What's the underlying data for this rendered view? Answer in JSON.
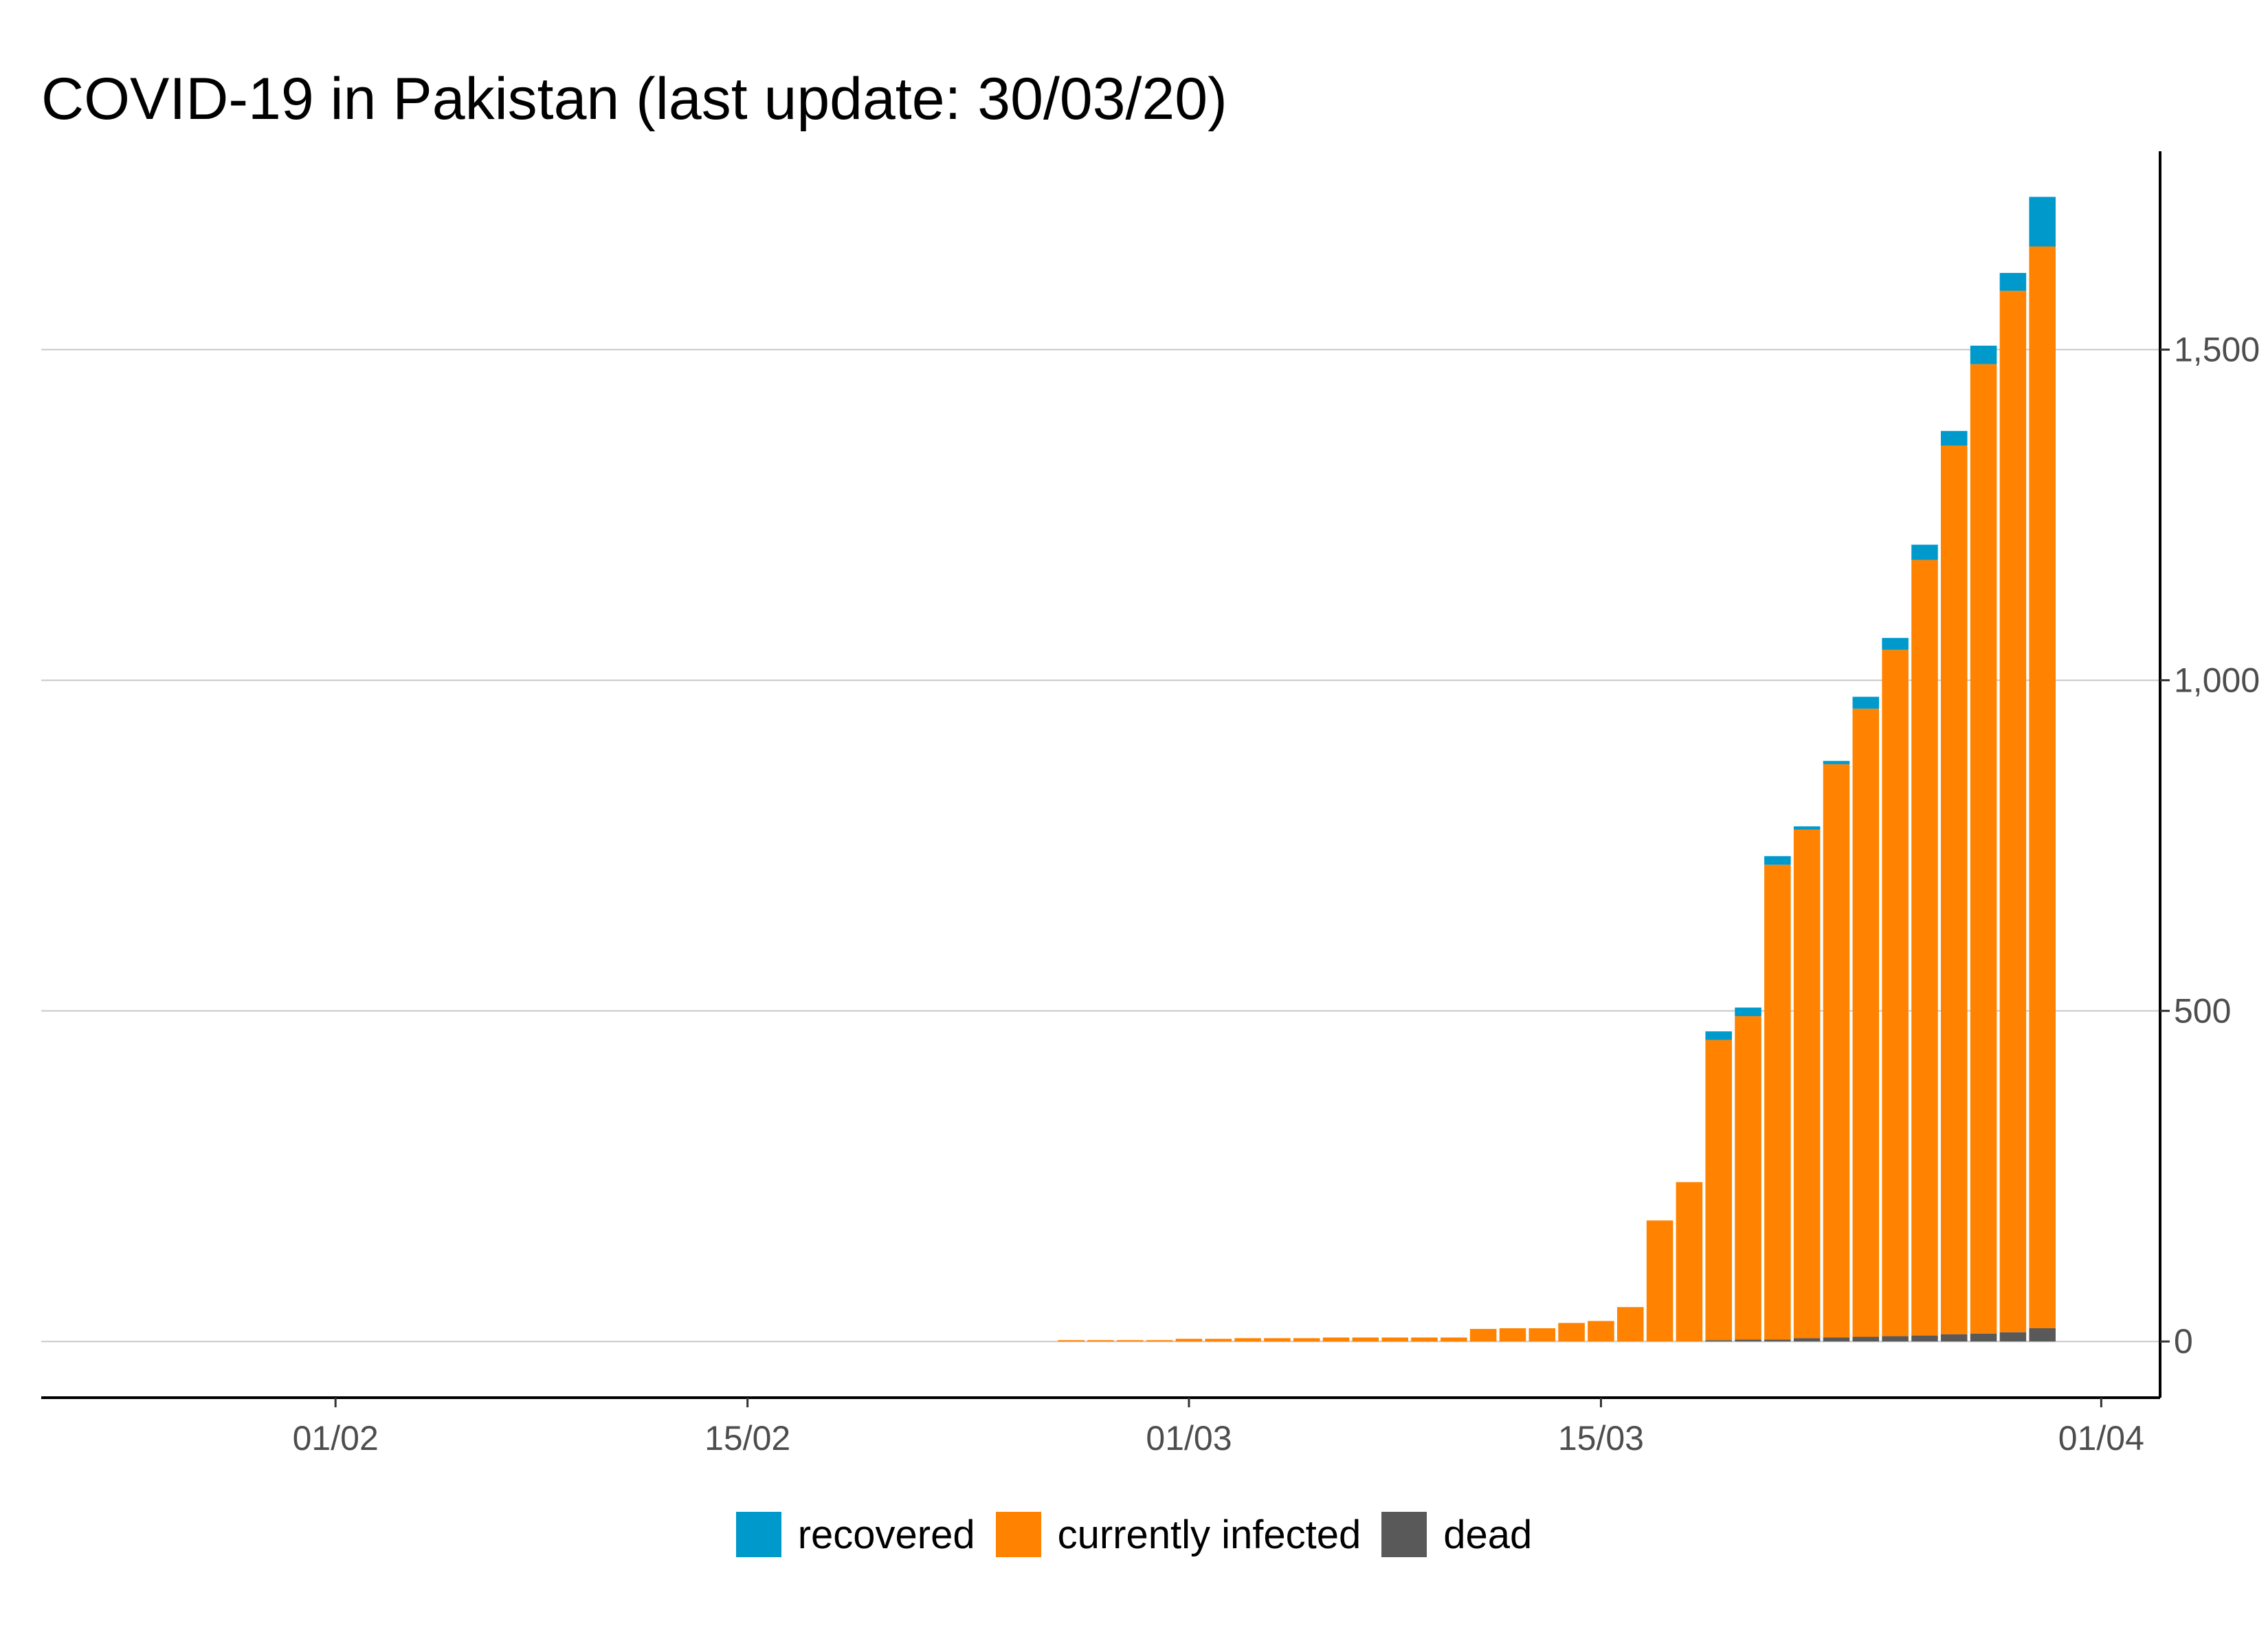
{
  "chart_data": {
    "type": "bar",
    "stacked": true,
    "title": "COVID-19 in Pakistan (last update: 30/03/20)",
    "xlabel": "",
    "ylabel": "",
    "y_axis_position": "right",
    "ylim": [
      -85,
      1800
    ],
    "yticks": [
      0,
      500,
      1000,
      1500
    ],
    "ytick_labels": [
      "0",
      "500",
      "1,000",
      "1,500"
    ],
    "x_axis": {
      "type": "date",
      "range": [
        "2020-01-22",
        "2020-04-03"
      ],
      "ticks": [
        "2020-02-01",
        "2020-02-15",
        "2020-03-01",
        "2020-03-15",
        "2020-04-01"
      ],
      "tick_labels": [
        "01/02",
        "15/02",
        "01/03",
        "15/03",
        "01/04"
      ]
    },
    "grid": "horizontal",
    "legend_position": "bottom",
    "dates": [
      "2020-02-26",
      "2020-02-27",
      "2020-02-28",
      "2020-02-29",
      "2020-03-01",
      "2020-03-02",
      "2020-03-03",
      "2020-03-04",
      "2020-03-05",
      "2020-03-06",
      "2020-03-07",
      "2020-03-08",
      "2020-03-09",
      "2020-03-10",
      "2020-03-11",
      "2020-03-12",
      "2020-03-13",
      "2020-03-14",
      "2020-03-15",
      "2020-03-16",
      "2020-03-17",
      "2020-03-18",
      "2020-03-19",
      "2020-03-20",
      "2020-03-21",
      "2020-03-22",
      "2020-03-23",
      "2020-03-24",
      "2020-03-25",
      "2020-03-26",
      "2020-03-27",
      "2020-03-28",
      "2020-03-29",
      "2020-03-30"
    ],
    "series": [
      {
        "name": "dead",
        "color": "#595959",
        "values": [
          0,
          0,
          0,
          0,
          0,
          0,
          0,
          0,
          0,
          0,
          0,
          0,
          0,
          0,
          0,
          0,
          0,
          0,
          0,
          0,
          0,
          0,
          2,
          3,
          3,
          5,
          6,
          7,
          8,
          9,
          11,
          12,
          14,
          20
        ]
      },
      {
        "name": "currently infected",
        "color": "#ff8200",
        "values": [
          2,
          2,
          2,
          2,
          4,
          4,
          5,
          5,
          5,
          6,
          6,
          6,
          6,
          6,
          19,
          20,
          20,
          28,
          31,
          52,
          183,
          241,
          454,
          489,
          718,
          769,
          867,
          950,
          1038,
          1173,
          1344,
          1466,
          1575,
          1636
        ]
      },
      {
        "name": "recovered",
        "color": "#0099cc",
        "values": [
          0,
          0,
          0,
          0,
          0,
          0,
          0,
          0,
          0,
          0,
          0,
          0,
          0,
          0,
          0,
          0,
          0,
          0,
          0,
          0,
          0,
          0,
          13,
          13,
          13,
          5,
          5,
          18,
          18,
          23,
          22,
          28,
          27,
          75
        ]
      }
    ],
    "legend": [
      {
        "name": "recovered",
        "color": "#0099cc"
      },
      {
        "name": "currently infected",
        "color": "#ff8200"
      },
      {
        "name": "dead",
        "color": "#595959"
      }
    ]
  }
}
